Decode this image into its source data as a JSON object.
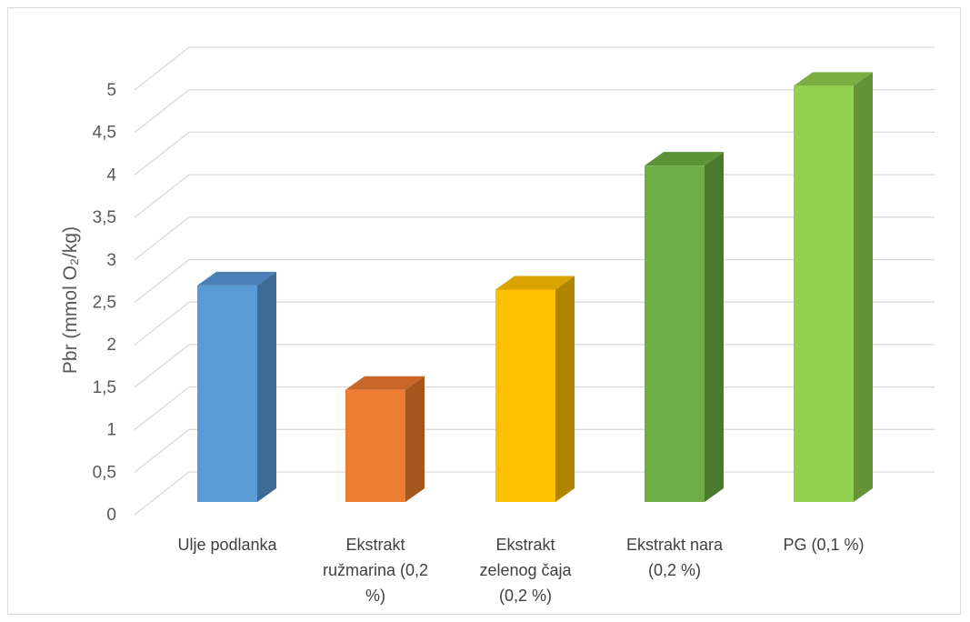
{
  "chart_data": {
    "type": "bar",
    "style": "3d-column",
    "title": "",
    "xlabel": "",
    "ylabel": "Pbr (mmol  O₂/kg)",
    "ylim": [
      0,
      5
    ],
    "yticks": [
      "0",
      "0,5",
      "1",
      "1,5",
      "2",
      "2,5",
      "3",
      "3,5",
      "4",
      "4,5",
      "5"
    ],
    "grid": true,
    "legend": "none",
    "categories": [
      [
        "Ulje podlanka"
      ],
      [
        "Ekstrakt",
        "ružmarina (0,2",
        "%)"
      ],
      [
        "Ekstrakt",
        "zelenog čaja",
        "(0,2 %)"
      ],
      [
        "Ekstrakt nara",
        "(0,2 %)"
      ],
      [
        "PG (0,1 %)"
      ]
    ],
    "values": [
      2.55,
      1.32,
      2.5,
      3.96,
      4.9
    ],
    "colors": [
      {
        "front": "#5b9bd5",
        "side": "#3e6b94",
        "top": "#4a80b5"
      },
      {
        "front": "#ed7d31",
        "side": "#a5561f",
        "top": "#c86628"
      },
      {
        "front": "#ffc000",
        "side": "#b08500",
        "top": "#d9a300"
      },
      {
        "front": "#70ad47",
        "side": "#4a7a2d",
        "top": "#5a9338"
      },
      {
        "front": "#92d050",
        "side": "#659238",
        "top": "#7aae43"
      }
    ]
  }
}
